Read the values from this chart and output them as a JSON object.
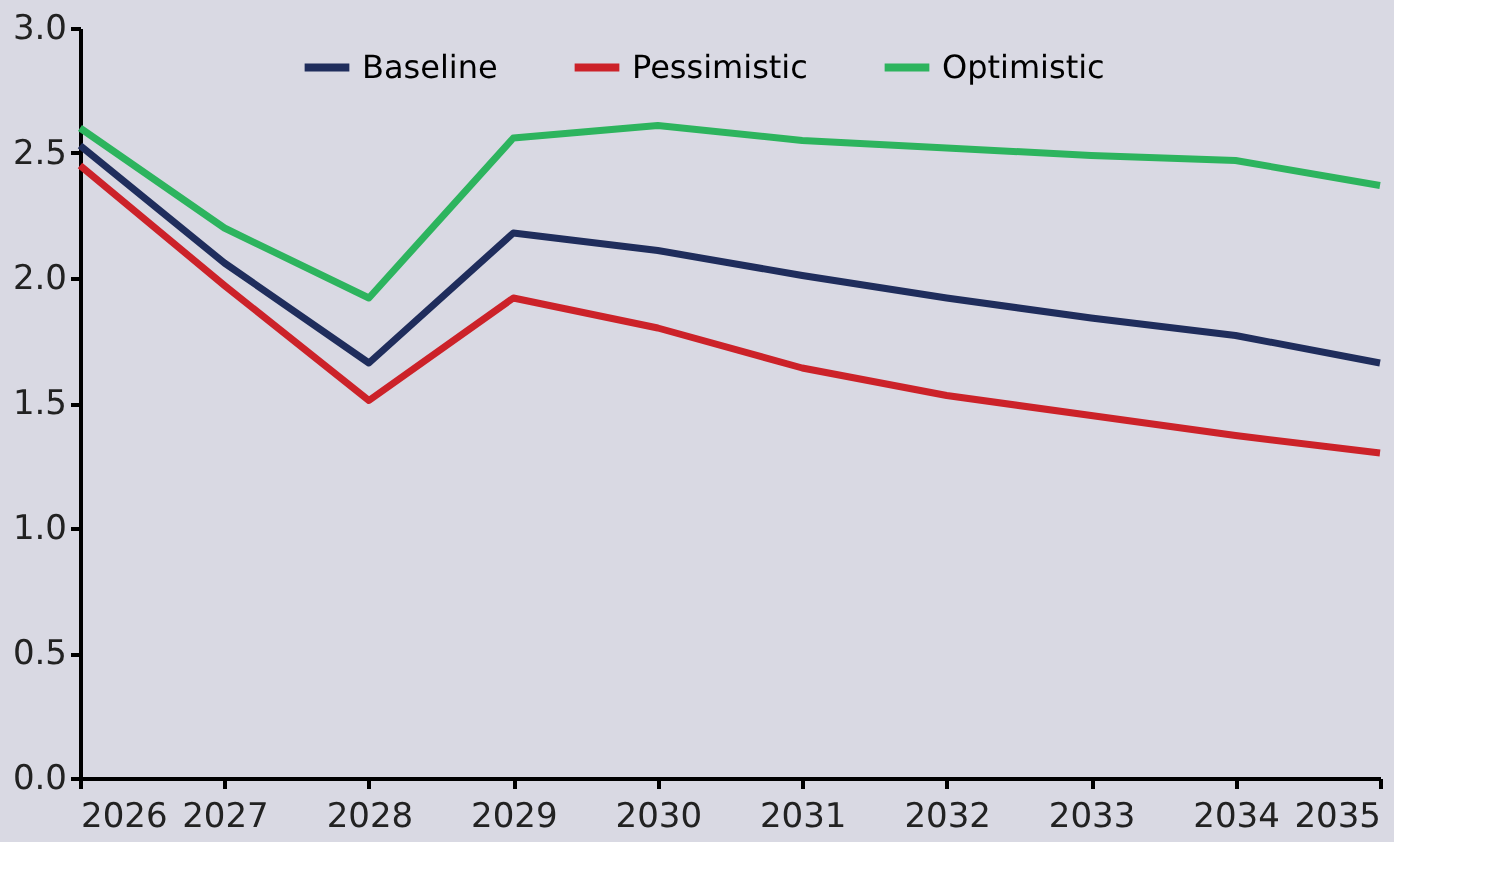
{
  "chart_data": {
    "type": "line",
    "x": [
      2026,
      2027,
      2028,
      2029,
      2030,
      2031,
      2032,
      2033,
      2034,
      2035
    ],
    "series": [
      {
        "name": "Baseline",
        "color": "#1f2d5c",
        "values": [
          2.53,
          2.06,
          1.66,
          2.18,
          2.11,
          2.01,
          1.92,
          1.84,
          1.77,
          1.66
        ]
      },
      {
        "name": "Pessimistic",
        "color": "#cc2229",
        "values": [
          2.45,
          1.97,
          1.51,
          1.92,
          1.8,
          1.64,
          1.53,
          1.45,
          1.37,
          1.3
        ]
      },
      {
        "name": "Optimistic",
        "color": "#2db45e",
        "values": [
          2.6,
          2.2,
          1.92,
          2.56,
          2.61,
          2.55,
          2.52,
          2.49,
          2.47,
          2.37
        ]
      }
    ],
    "xlim": [
      2026,
      2035
    ],
    "xticks": [
      2026,
      2027,
      2028,
      2029,
      2030,
      2031,
      2032,
      2033,
      2034,
      2035
    ],
    "ylim": [
      0,
      3
    ],
    "yticks": [
      {
        "value": 0,
        "label": "0.0"
      },
      0.5,
      {
        "value": 1,
        "label": "1.0"
      },
      1.5,
      {
        "value": 2,
        "label": "2.0"
      },
      2.5,
      {
        "value": 3,
        "label": "3.0"
      }
    ],
    "grid": false,
    "legend": "top",
    "marker": "none",
    "line_style": "solid"
  }
}
